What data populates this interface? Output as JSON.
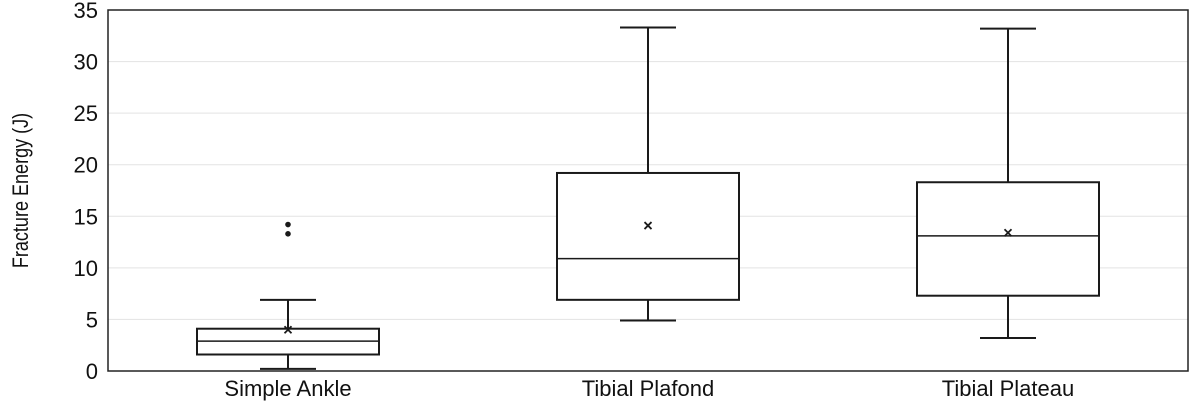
{
  "chart_data": {
    "type": "box",
    "ylabel": "Fracture Energy (J)",
    "xlabel": "",
    "ylim": [
      0,
      35
    ],
    "yticks": [
      "0",
      "5",
      "10",
      "15",
      "20",
      "25",
      "30",
      "35"
    ],
    "grid": "horizontal",
    "categories": [
      "Simple Ankle",
      "Tibial Plafond",
      "Tibial Plateau"
    ],
    "boxes": [
      {
        "category": "Simple Ankle",
        "min": 0.2,
        "q1": 1.6,
        "median": 2.9,
        "q3": 4.1,
        "max": 6.9,
        "mean": 4.0,
        "outliers": [
          13.3,
          14.2
        ]
      },
      {
        "category": "Tibial Plafond",
        "min": 4.9,
        "q1": 6.9,
        "median": 10.9,
        "q3": 19.2,
        "max": 33.3,
        "mean": 14.1,
        "outliers": []
      },
      {
        "category": "Tibial Plateau",
        "min": 3.2,
        "q1": 7.3,
        "median": 13.1,
        "q3": 18.3,
        "max": 33.2,
        "mean": 13.4,
        "outliers": []
      }
    ],
    "colors": {
      "box_stroke": "#1a1a1a",
      "grid": "#e3e3e3",
      "frame": "#222222"
    }
  }
}
